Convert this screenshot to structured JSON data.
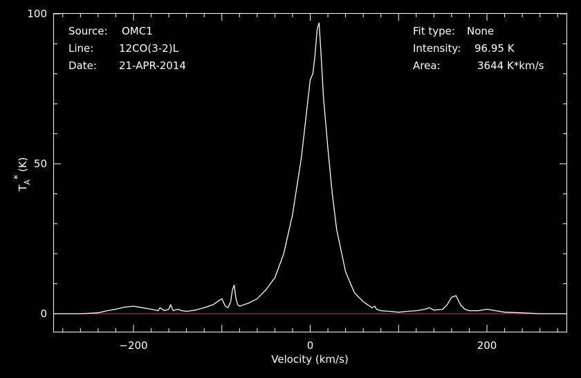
{
  "header": {
    "source_label": "Source:",
    "source_value": "OMC1",
    "line_label": "Line:",
    "line_value": "12CO(3-2)L",
    "date_label": "Date:",
    "date_value": "21-APR-2014",
    "fit_label": "Fit type:",
    "fit_value": "None",
    "intensity_label": "Intensity:",
    "intensity_value": "96.95 K",
    "area_label": "Area:",
    "area_value": "3644 K*km/s"
  },
  "colors": {
    "background": "#000000",
    "axes": "#ffffff",
    "spectrum": "#ffffff",
    "baseline": "#d03030"
  },
  "chart_data": {
    "type": "line",
    "xlabel": "Velocity (km/s)",
    "ylabel_main": "T",
    "ylabel_sub": "A",
    "ylabel_sup": "*",
    "ylabel_unit": "(K)",
    "xlim": [
      -290,
      290
    ],
    "ylim": [
      -6,
      100
    ],
    "x_ticks": [
      -200,
      0,
      200
    ],
    "x_tick_labels": [
      "−200",
      "0",
      "200"
    ],
    "y_ticks": [
      0,
      50,
      100
    ],
    "y_tick_labels": [
      "0",
      "50",
      "100"
    ],
    "grid": false,
    "baseline": 0,
    "series": [
      {
        "x": [
          -290,
          -260,
          -240,
          -230,
          -220,
          -210,
          -200,
          -190,
          -180,
          -172,
          -170,
          -165,
          -160,
          -158,
          -155,
          -150,
          -145,
          -140,
          -130,
          -120,
          -110,
          -105,
          -100,
          -96,
          -93,
          -90,
          -88,
          -86,
          -84,
          -82,
          -80,
          -75,
          -70,
          -60,
          -50,
          -40,
          -30,
          -20,
          -10,
          -5,
          0,
          3,
          5,
          8,
          10,
          12,
          15,
          18,
          20,
          25,
          30,
          40,
          50,
          60,
          70,
          73,
          75,
          80,
          90,
          100,
          110,
          120,
          130,
          135,
          140,
          150,
          155,
          160,
          165,
          170,
          175,
          180,
          190,
          200,
          210,
          220,
          240,
          260,
          280,
          290
        ],
        "y": [
          0,
          0,
          0.3,
          1.0,
          1.5,
          2.2,
          2.5,
          2.0,
          1.5,
          1.0,
          2.0,
          1.0,
          1.5,
          3.0,
          1.0,
          1.5,
          1.0,
          0.8,
          1.2,
          2.0,
          3.0,
          4.0,
          5.0,
          2.5,
          2.0,
          4.0,
          8.0,
          9.5,
          5.0,
          3.0,
          2.5,
          3.0,
          3.5,
          5.0,
          8.0,
          12.0,
          20.0,
          33.0,
          52.0,
          65.0,
          78.0,
          80.0,
          85.0,
          95.0,
          96.95,
          88.0,
          72.0,
          62.0,
          55.0,
          40.0,
          28.0,
          14.0,
          7.0,
          4.0,
          2.0,
          2.5,
          1.5,
          1.0,
          0.8,
          0.5,
          0.8,
          1.0,
          1.5,
          2.0,
          1.2,
          1.5,
          3.0,
          5.5,
          6.0,
          3.0,
          1.5,
          1.0,
          1.0,
          1.5,
          1.0,
          0.5,
          0.3,
          0,
          0,
          0
        ]
      }
    ]
  }
}
